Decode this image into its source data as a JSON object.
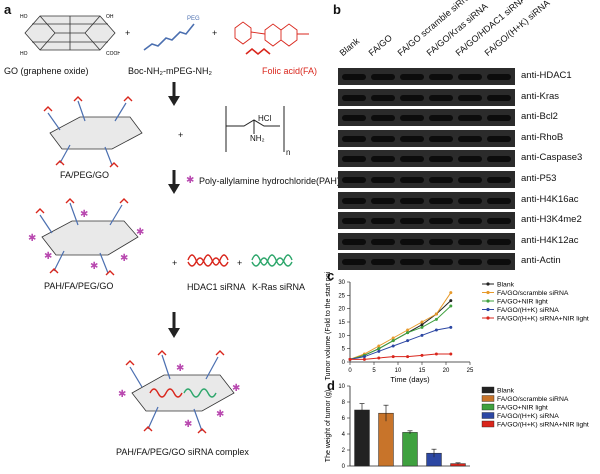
{
  "panel_a": {
    "letter": "a",
    "reagents": {
      "go": "GO (graphene oxide)",
      "peg": "Boc-NH₂-mPEG-NH₂",
      "fa": "Folic acid(FA)",
      "peg_tag": "PEG"
    },
    "steps": {
      "fa_peg_go": "FA/PEG/GO",
      "pah_note": "Poly-allylamine hydrochloride(PAH)",
      "pah_fa_peg_go": "PAH/FA/PEG/GO",
      "hdac1": "HDAC1 siRNA",
      "kras": "K-Ras siRNA",
      "complex": "PAH/FA/PEG/GO siRNA complex"
    },
    "pah_struct": {
      "hcl": "HCl",
      "nh2": "NH₂",
      "n": "n"
    },
    "plus": "+",
    "colors": {
      "fa": "#d9261c",
      "hdac1": "#d9261c",
      "kras": "#2da66b",
      "pah_star": "#b94ab0",
      "peg": "#4b6fb0"
    }
  },
  "panel_b": {
    "letter": "b",
    "lanes": [
      "Blank",
      "FA/GO",
      "FA/GO scramble siRNA",
      "FA/GO/Kras siRNA",
      "FA/GO/HDAC1 siRNA",
      "FA/GO/(H+K) siRNA"
    ],
    "blots": [
      "anti-HDAC1",
      "anti-Kras",
      "anti-Bcl2",
      "anti-RhoB",
      "anti-Caspase3",
      "anti-P53",
      "anti-H4K16ac",
      "anti-H3K4me2",
      "anti-H4K12ac",
      "anti-Actin"
    ]
  },
  "panel_c": {
    "letter": "c",
    "chart_data": {
      "type": "line",
      "xlabel": "Time (days)",
      "ylabel": "Tumor volume (Fold to the start point)",
      "xlim": [
        0,
        25
      ],
      "ylim": [
        0,
        30
      ],
      "xticks": [
        "0",
        "5",
        "10",
        "15",
        "20",
        "25"
      ],
      "yticks": [
        "0",
        "5",
        "10",
        "15",
        "20",
        "25",
        "30"
      ],
      "legend_position": "top-right",
      "x": [
        0,
        3,
        6,
        9,
        12,
        15,
        18,
        21
      ],
      "series": [
        {
          "name": "Blank",
          "color": "#222222",
          "values": [
            1,
            2.5,
            5,
            8,
            11,
            14,
            18,
            23
          ]
        },
        {
          "name": "FA/GO/scramble siRNA",
          "color": "#e79a2b",
          "values": [
            1,
            3,
            6,
            9,
            12,
            15,
            18,
            26
          ]
        },
        {
          "name": "FA/GO+NIR light",
          "color": "#3fa13f",
          "values": [
            1,
            2.5,
            5,
            8,
            11,
            13,
            16,
            21
          ]
        },
        {
          "name": "FA/GO/(H+K) siRNA",
          "color": "#2c47a3",
          "values": [
            1,
            2,
            4,
            6,
            8,
            10,
            12,
            13
          ]
        },
        {
          "name": "FA/GO/(H+K) siRNA+NIR light",
          "color": "#d9261c",
          "values": [
            1,
            1,
            1.5,
            2,
            2,
            2.5,
            3,
            3
          ]
        }
      ]
    }
  },
  "panel_d": {
    "letter": "d",
    "chart_data": {
      "type": "bar",
      "ylabel": "The weight of tumor (g)",
      "ylim": [
        0,
        10
      ],
      "yticks": [
        "0",
        "2",
        "4",
        "6",
        "8",
        "10"
      ],
      "legend_position": "right",
      "categories": [
        "Blank",
        "FA/GO/scramble siRNA",
        "FA/GO+NIR light",
        "FA/GO/(H+K) siRNA",
        "FA/GO/(H+K) siRNA+NIR light"
      ],
      "values": [
        7.0,
        6.6,
        4.2,
        1.6,
        0.3
      ],
      "errors": [
        0.8,
        1.0,
        0.2,
        0.5,
        0.1
      ],
      "colors": [
        "#222222",
        "#c8742a",
        "#3fa13f",
        "#2c47a3",
        "#d9261c"
      ]
    }
  }
}
